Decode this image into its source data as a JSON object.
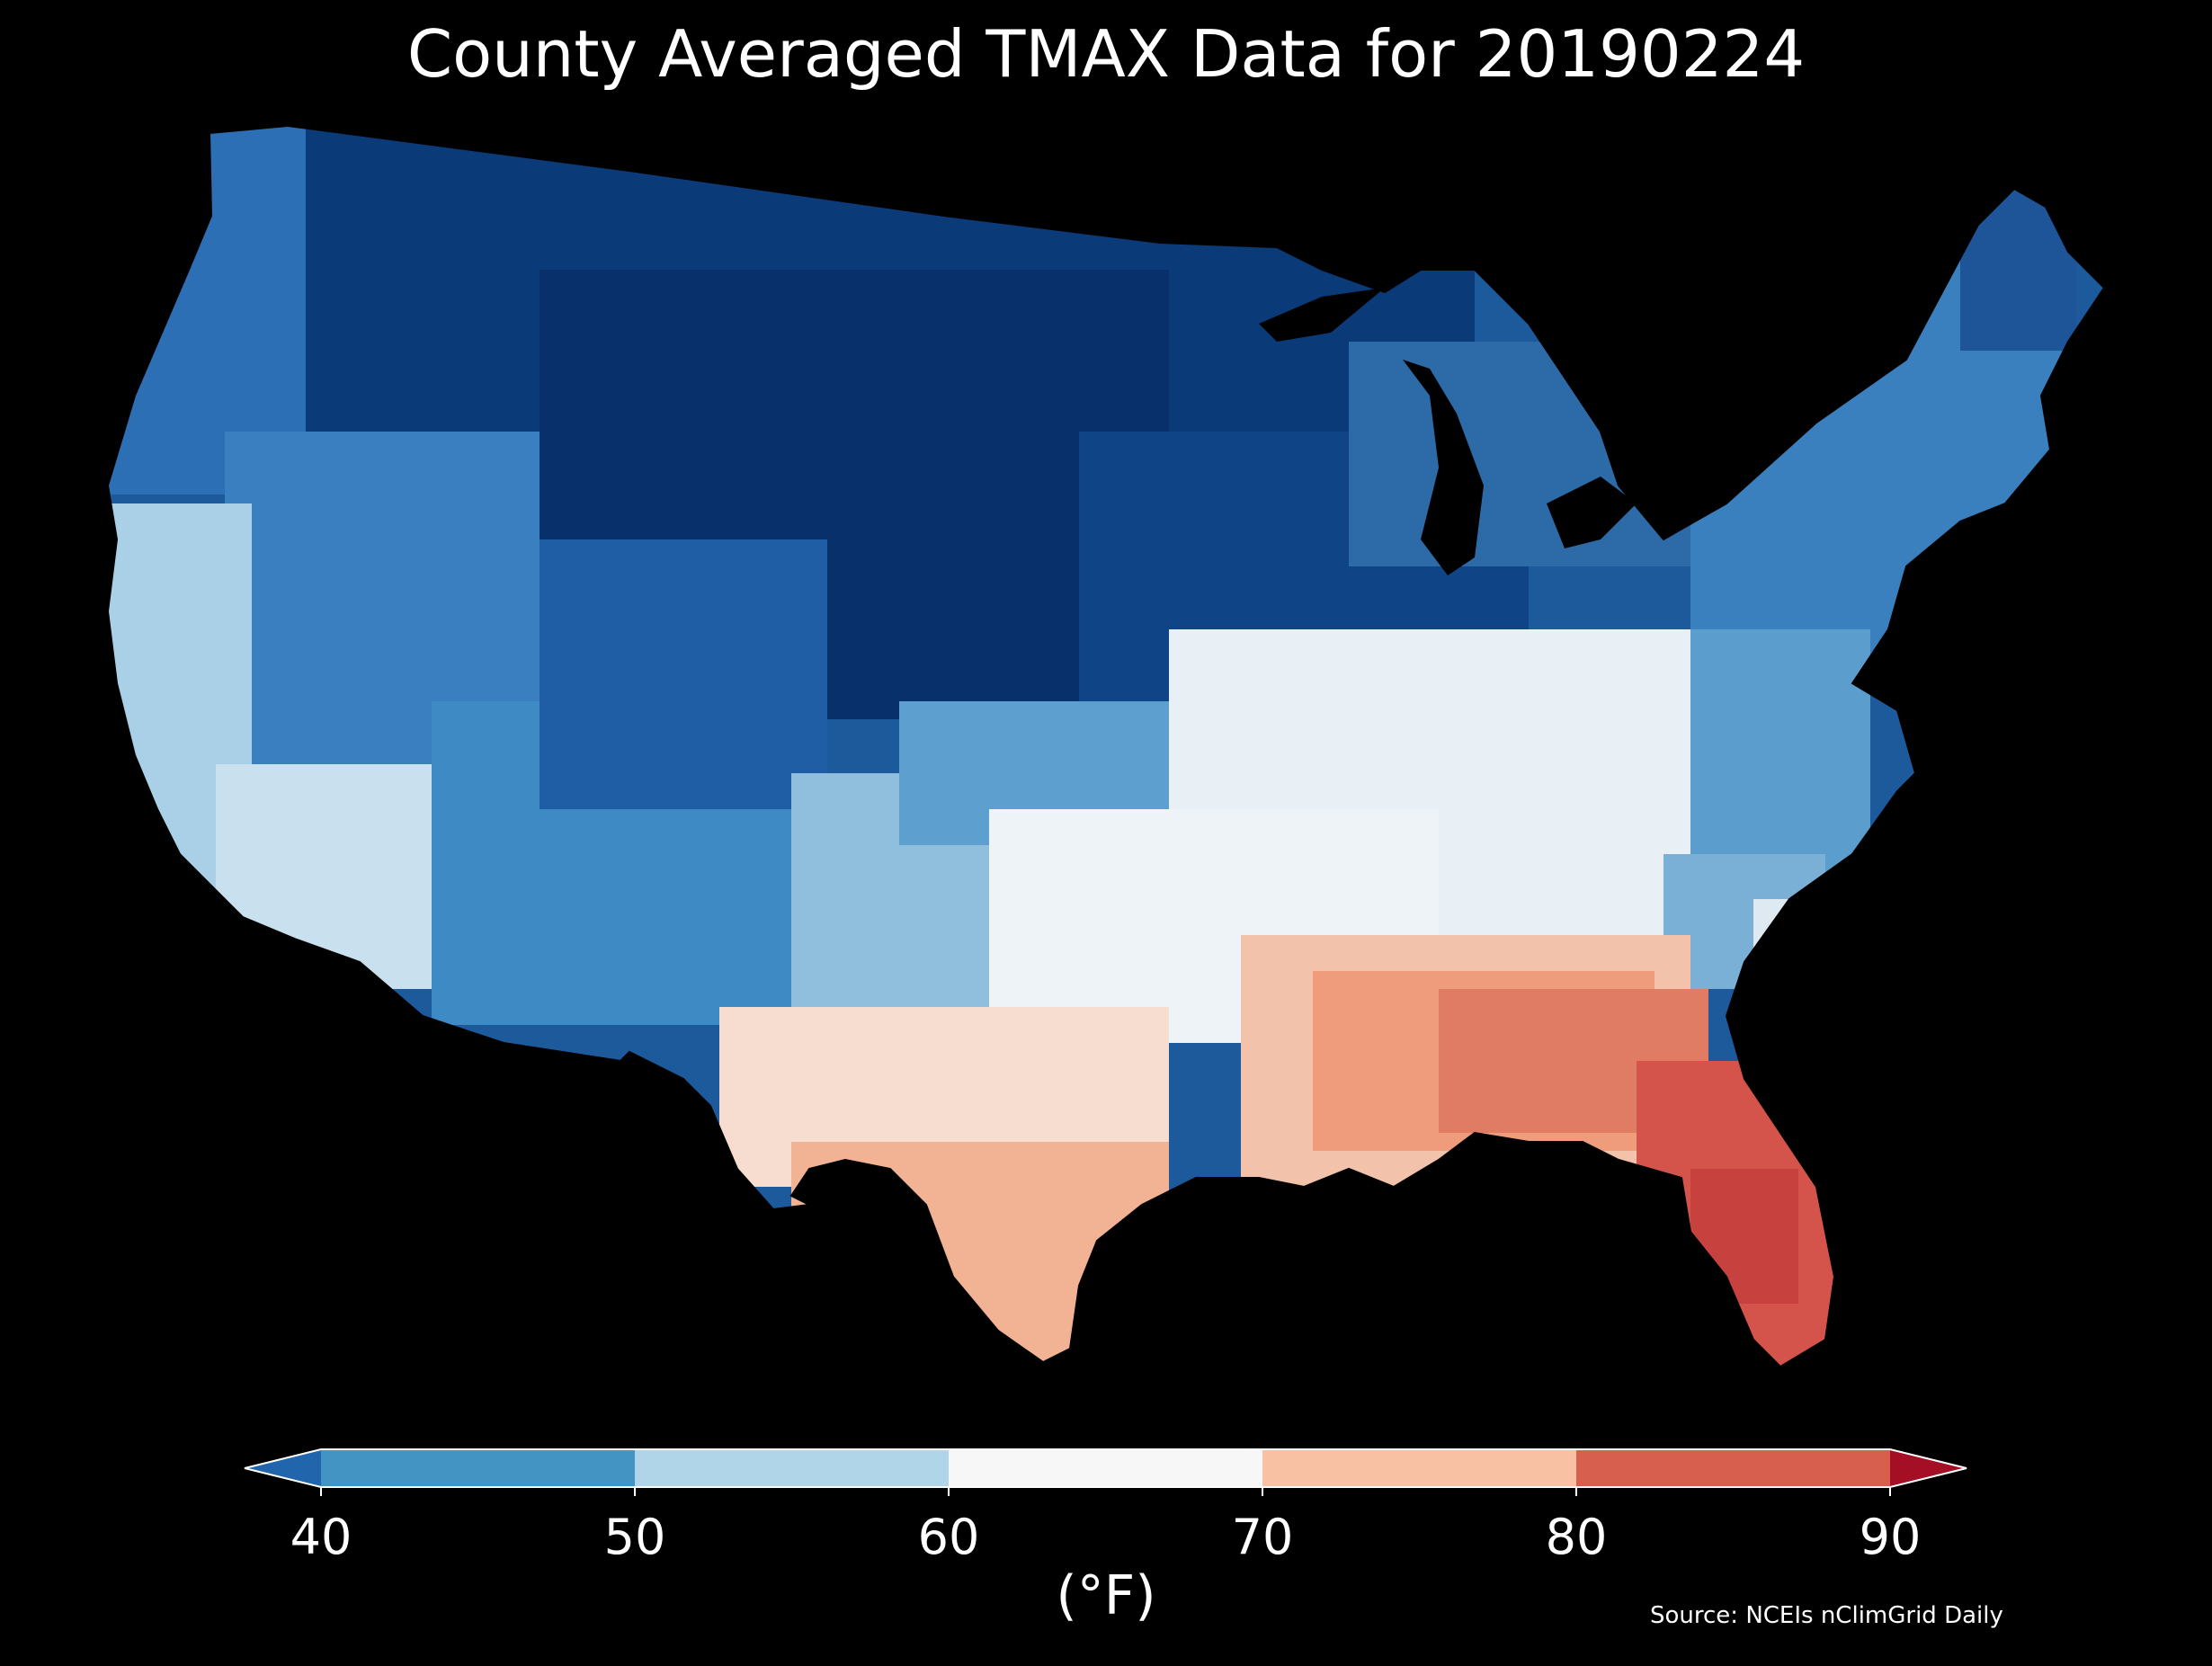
{
  "title": "County Averaged TMAX Data for 20190224",
  "source": "Source: NCEIs nClimGrid Daily",
  "colorbar": {
    "unit": "(°F)",
    "ticks": [
      "40",
      "50",
      "60",
      "70",
      "80",
      "90"
    ],
    "bins": [
      {
        "range": "<40",
        "color": "#2166ac"
      },
      {
        "range": "40-50",
        "color": "#4393c3"
      },
      {
        "range": "50-60",
        "color": "#b1d5e8"
      },
      {
        "range": "60-70",
        "color": "#f7f7f7"
      },
      {
        "range": "70-80",
        "color": "#f8c1a4"
      },
      {
        "range": "80-90",
        "color": "#d6604d"
      },
      {
        "range": ">90",
        "color": "#a50f25"
      }
    ]
  },
  "map": {
    "region": "Contiguous United States",
    "subdivision": "counties",
    "background": "#000000",
    "region_colors": [
      {
        "region": "Northern Plains / Upper Midwest",
        "color": "#08306b"
      },
      {
        "region": "Northern Rockies",
        "color": "#0b3a78"
      },
      {
        "region": "Pacific Northwest",
        "color": "#2c6fb4"
      },
      {
        "region": "Great Basin",
        "color": "#3a7fc0"
      },
      {
        "region": "Southwest / Four Corners",
        "color": "#3e8ac5"
      },
      {
        "region": "California Coast",
        "color": "#a9d0e6"
      },
      {
        "region": "Southern California / Arizona",
        "color": "#c9e0ee"
      },
      {
        "region": "Great Lakes",
        "color": "#2c6aa8"
      },
      {
        "region": "Ohio Valley",
        "color": "#e8eff5"
      },
      {
        "region": "Northeast",
        "color": "#3a80bf"
      },
      {
        "region": "Mid-Atlantic",
        "color": "#5b9dcc"
      },
      {
        "region": "Central Plains",
        "color": "#edf3f7"
      },
      {
        "region": "Texas",
        "color": "#f6ddcf"
      },
      {
        "region": "South Texas",
        "color": "#f2b394"
      },
      {
        "region": "Deep South",
        "color": "#ef9c7d"
      },
      {
        "region": "Florida Peninsula",
        "color": "#d4534a"
      }
    ]
  }
}
